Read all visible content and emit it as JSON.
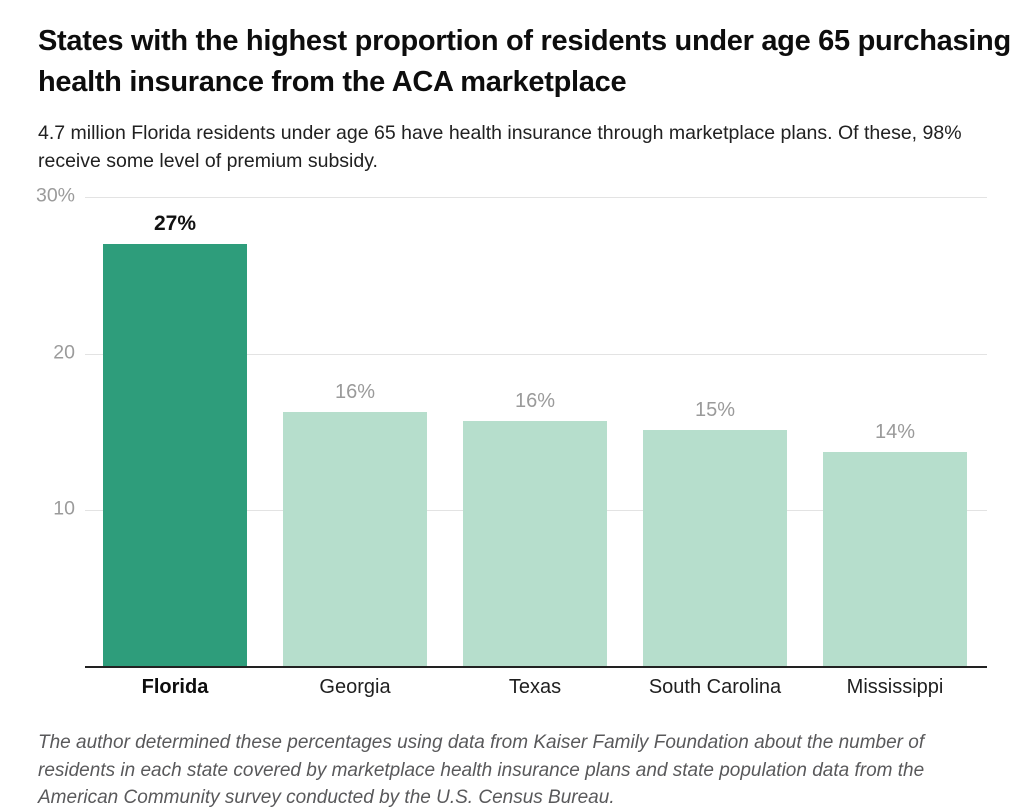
{
  "chart_data": {
    "type": "bar",
    "title": "States with the highest proportion of residents under age 65 purchasing health insurance from the ACA marketplace",
    "subtitle": "4.7 million Florida residents under age 65 have health insurance through marketplace plans. Of these, 98% receive some level of premium subsidy.",
    "source_note": "The author determined these percentages using data from Kaiser Family Foundation about the number of residents in each state covered by marketplace health insurance plans and state population data from the American Community survey conducted by the U.S. Census Bureau.",
    "categories": [
      "Florida",
      "Georgia",
      "Texas",
      "South Carolina",
      "Mississippi"
    ],
    "values": [
      27,
      16.3,
      15.7,
      15.1,
      13.7
    ],
    "value_labels": [
      "27%",
      "16%",
      "16%",
      "15%",
      "14%"
    ],
    "highlight_index": 0,
    "xlabel": "",
    "ylabel": "",
    "ylim": [
      0,
      30
    ],
    "grid": true,
    "legend": "none",
    "y_ticks": [
      {
        "value": 30,
        "label": "30%"
      },
      {
        "value": 20,
        "label": "20"
      },
      {
        "value": 10,
        "label": "10"
      }
    ],
    "colors": {
      "highlight_bar": "#2e9d7b",
      "default_bar": "#b6decc",
      "gridline": "#e3e3e3",
      "axis_line": "#222222",
      "tick_label": "#9b9b9b",
      "value_label": "#9a9a9a",
      "value_label_highlight": "#111111",
      "x_label": "#1f1f1f",
      "background": "#ffffff"
    }
  }
}
